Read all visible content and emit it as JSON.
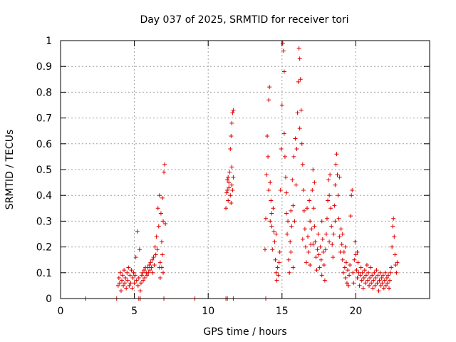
{
  "chart_data": {
    "type": "scatter",
    "title": "Day 037 of 2025, SRMTID for receiver tori",
    "xlabel": "GPS time / hours",
    "ylabel": "SRMTID / TECUs",
    "xlim": [
      0,
      25
    ],
    "ylim": [
      0,
      1
    ],
    "xticks": [
      0,
      5,
      10,
      15,
      20
    ],
    "yticks": [
      0,
      0.1,
      0.2,
      0.3,
      0.4,
      0.5,
      0.6,
      0.7,
      0.8,
      0.9,
      1
    ],
    "xtick_labels": [
      "0",
      "5",
      "10",
      "15",
      "20"
    ],
    "ytick_labels": [
      "0",
      "0.1",
      "0.2",
      "0.3",
      "0.4",
      "0.5",
      "0.6",
      "0.7",
      "0.8",
      "0.9",
      "1"
    ],
    "grid": true,
    "marker": "+",
    "color": "#e00000",
    "series": [
      {
        "name": "SRMTID",
        "points": [
          [
            1.7,
            0.0
          ],
          [
            3.8,
            0.0
          ],
          [
            5.3,
            0.0
          ],
          [
            5.4,
            0.0
          ],
          [
            7.0,
            0.0
          ],
          [
            9.1,
            0.0
          ],
          [
            11.2,
            0.0
          ],
          [
            11.3,
            0.0
          ],
          [
            11.7,
            0.0
          ],
          [
            13.9,
            0.0
          ],
          [
            3.9,
            0.05
          ],
          [
            3.95,
            0.08
          ],
          [
            4.0,
            0.06
          ],
          [
            4.05,
            0.1
          ],
          [
            4.1,
            0.03
          ],
          [
            4.15,
            0.07
          ],
          [
            4.2,
            0.09
          ],
          [
            4.25,
            0.05
          ],
          [
            4.3,
            0.11
          ],
          [
            4.35,
            0.06
          ],
          [
            4.4,
            0.08
          ],
          [
            4.45,
            0.04
          ],
          [
            4.5,
            0.1
          ],
          [
            4.55,
            0.07
          ],
          [
            4.6,
            0.12
          ],
          [
            4.65,
            0.05
          ],
          [
            4.7,
            0.09
          ],
          [
            4.75,
            0.06
          ],
          [
            4.8,
            0.11
          ],
          [
            4.85,
            0.04
          ],
          [
            4.9,
            0.08
          ],
          [
            4.95,
            0.1
          ],
          [
            5.0,
            0.06
          ],
          [
            5.05,
            0.09
          ],
          [
            5.1,
            0.16
          ],
          [
            5.15,
            0.07
          ],
          [
            5.2,
            0.26
          ],
          [
            5.25,
            0.05
          ],
          [
            5.3,
            0.08
          ],
          [
            5.35,
            0.19
          ],
          [
            5.4,
            0.03
          ],
          [
            5.45,
            0.06
          ],
          [
            5.5,
            0.09
          ],
          [
            5.55,
            0.1
          ],
          [
            5.6,
            0.07
          ],
          [
            5.65,
            0.11
          ],
          [
            5.7,
            0.08
          ],
          [
            5.75,
            0.12
          ],
          [
            5.8,
            0.1
          ],
          [
            5.85,
            0.09
          ],
          [
            5.9,
            0.12
          ],
          [
            5.95,
            0.1
          ],
          [
            6.0,
            0.13
          ],
          [
            6.05,
            0.11
          ],
          [
            6.1,
            0.14
          ],
          [
            6.15,
            0.12
          ],
          [
            6.2,
            0.15
          ],
          [
            6.25,
            0.1
          ],
          [
            6.3,
            0.16
          ],
          [
            6.35,
            0.13
          ],
          [
            6.4,
            0.2
          ],
          [
            6.45,
            0.17
          ],
          [
            6.5,
            0.24
          ],
          [
            6.55,
            0.19
          ],
          [
            6.6,
            0.35
          ],
          [
            6.65,
            0.28
          ],
          [
            6.7,
            0.4
          ],
          [
            6.75,
            0.14
          ],
          [
            6.8,
            0.33
          ],
          [
            6.85,
            0.22
          ],
          [
            6.9,
            0.39
          ],
          [
            6.95,
            0.3
          ],
          [
            7.0,
            0.49
          ],
          [
            7.05,
            0.52
          ],
          [
            7.1,
            0.29
          ],
          [
            6.95,
            0.1
          ],
          [
            6.85,
            0.12
          ],
          [
            6.75,
            0.08
          ],
          [
            6.9,
            0.17
          ],
          [
            6.7,
            0.12
          ],
          [
            11.2,
            0.35
          ],
          [
            11.25,
            0.41
          ],
          [
            11.3,
            0.46
          ],
          [
            11.35,
            0.38
          ],
          [
            11.4,
            0.43
          ],
          [
            11.45,
            0.49
          ],
          [
            11.5,
            0.4
          ],
          [
            11.55,
            0.37
          ],
          [
            11.6,
            0.44
          ],
          [
            11.65,
            0.42
          ],
          [
            11.7,
            0.47
          ],
          [
            11.5,
            0.58
          ],
          [
            11.55,
            0.63
          ],
          [
            11.6,
            0.68
          ],
          [
            11.65,
            0.72
          ],
          [
            11.7,
            0.73
          ],
          [
            11.4,
            0.45
          ],
          [
            11.3,
            0.42
          ],
          [
            11.6,
            0.51
          ],
          [
            11.35,
            0.47
          ],
          [
            13.85,
            0.19
          ],
          [
            13.9,
            0.31
          ],
          [
            13.95,
            0.48
          ],
          [
            14.0,
            0.63
          ],
          [
            14.05,
            0.55
          ],
          [
            14.1,
            0.77
          ],
          [
            14.15,
            0.82
          ],
          [
            14.2,
            0.45
          ],
          [
            14.25,
            0.38
          ],
          [
            14.3,
            0.28
          ],
          [
            14.35,
            0.19
          ],
          [
            14.4,
            0.35
          ],
          [
            14.45,
            0.26
          ],
          [
            14.5,
            0.22
          ],
          [
            14.55,
            0.15
          ],
          [
            14.6,
            0.1
          ],
          [
            14.65,
            0.07
          ],
          [
            14.7,
            0.12
          ],
          [
            14.75,
            0.09
          ],
          [
            14.8,
            0.14
          ],
          [
            14.85,
            0.18
          ],
          [
            14.9,
            0.42
          ],
          [
            14.95,
            0.58
          ],
          [
            15.0,
            0.75
          ],
          [
            15.05,
            0.99
          ],
          [
            15.1,
            0.96
          ],
          [
            15.15,
            0.88
          ],
          [
            15.2,
            0.55
          ],
          [
            15.25,
            0.47
          ],
          [
            15.3,
            0.33
          ],
          [
            15.35,
            0.25
          ],
          [
            15.4,
            0.3
          ],
          [
            15.45,
            0.15
          ],
          [
            15.5,
            0.1
          ],
          [
            15.55,
            0.22
          ],
          [
            15.6,
            0.34
          ],
          [
            15.65,
            0.28
          ],
          [
            15.7,
            0.46
          ],
          [
            15.75,
            0.36
          ],
          [
            15.8,
            0.55
          ],
          [
            15.85,
            0.3
          ],
          [
            15.9,
            0.62
          ],
          [
            15.95,
            0.44
          ],
          [
            16.0,
            0.58
          ],
          [
            16.05,
            0.72
          ],
          [
            16.1,
            0.84
          ],
          [
            16.15,
            0.97
          ],
          [
            16.2,
            0.93
          ],
          [
            16.25,
            0.85
          ],
          [
            16.3,
            0.73
          ],
          [
            16.35,
            0.6
          ],
          [
            16.4,
            0.52
          ],
          [
            16.45,
            0.42
          ],
          [
            16.5,
            0.34
          ],
          [
            16.55,
            0.27
          ],
          [
            16.6,
            0.2
          ],
          [
            16.65,
            0.14
          ],
          [
            16.7,
            0.35
          ],
          [
            16.75,
            0.24
          ],
          [
            16.8,
            0.18
          ],
          [
            16.85,
            0.38
          ],
          [
            16.9,
            0.3
          ],
          [
            16.95,
            0.21
          ],
          [
            17.0,
            0.27
          ],
          [
            17.05,
            0.42
          ],
          [
            17.1,
            0.5
          ],
          [
            17.15,
            0.35
          ],
          [
            17.2,
            0.28
          ],
          [
            17.25,
            0.22
          ],
          [
            17.3,
            0.16
          ],
          [
            17.35,
            0.11
          ],
          [
            17.4,
            0.19
          ],
          [
            17.45,
            0.25
          ],
          [
            17.5,
            0.17
          ],
          [
            17.55,
            0.12
          ],
          [
            17.6,
            0.2
          ],
          [
            17.65,
            0.15
          ],
          [
            17.7,
            0.09
          ],
          [
            17.75,
            0.23
          ],
          [
            17.8,
            0.18
          ],
          [
            17.85,
            0.13
          ],
          [
            17.9,
            0.07
          ],
          [
            17.95,
            0.19
          ],
          [
            18.0,
            0.25
          ],
          [
            18.05,
            0.31
          ],
          [
            18.1,
            0.38
          ],
          [
            18.15,
            0.46
          ],
          [
            18.2,
            0.4
          ],
          [
            18.25,
            0.48
          ],
          [
            18.3,
            0.35
          ],
          [
            18.35,
            0.28
          ],
          [
            18.4,
            0.21
          ],
          [
            18.45,
            0.16
          ],
          [
            18.5,
            0.25
          ],
          [
            18.55,
            0.36
          ],
          [
            18.6,
            0.44
          ],
          [
            18.65,
            0.52
          ],
          [
            18.7,
            0.56
          ],
          [
            18.75,
            0.48
          ],
          [
            18.8,
            0.4
          ],
          [
            18.85,
            0.31
          ],
          [
            18.9,
            0.24
          ],
          [
            18.95,
            0.18
          ],
          [
            19.0,
            0.27
          ],
          [
            19.05,
            0.21
          ],
          [
            19.1,
            0.15
          ],
          [
            19.15,
            0.1
          ],
          [
            19.2,
            0.18
          ],
          [
            19.25,
            0.12
          ],
          [
            19.3,
            0.08
          ],
          [
            19.35,
            0.14
          ],
          [
            19.4,
            0.06
          ],
          [
            19.45,
            0.11
          ],
          [
            19.5,
            0.05
          ],
          [
            19.55,
            0.09
          ],
          [
            19.6,
            0.13
          ],
          [
            19.65,
            0.32
          ],
          [
            19.7,
            0.4
          ],
          [
            19.75,
            0.42
          ],
          [
            19.8,
            0.1
          ],
          [
            19.85,
            0.06
          ],
          [
            19.9,
            0.15
          ],
          [
            19.95,
            0.22
          ],
          [
            20.0,
            0.17
          ],
          [
            20.05,
            0.11
          ],
          [
            20.1,
            0.08
          ],
          [
            20.15,
            0.14
          ],
          [
            20.2,
            0.1
          ],
          [
            20.25,
            0.05
          ],
          [
            20.3,
            0.09
          ],
          [
            20.35,
            0.12
          ],
          [
            20.4,
            0.07
          ],
          [
            20.45,
            0.1
          ],
          [
            20.5,
            0.04
          ],
          [
            20.55,
            0.08
          ],
          [
            20.6,
            0.11
          ],
          [
            20.65,
            0.06
          ],
          [
            20.7,
            0.09
          ],
          [
            20.75,
            0.13
          ],
          [
            20.8,
            0.07
          ],
          [
            20.85,
            0.1
          ],
          [
            20.9,
            0.05
          ],
          [
            20.95,
            0.08
          ],
          [
            21.0,
            0.12
          ],
          [
            21.05,
            0.06
          ],
          [
            21.1,
            0.09
          ],
          [
            21.15,
            0.04
          ],
          [
            21.2,
            0.07
          ],
          [
            21.25,
            0.1
          ],
          [
            21.3,
            0.05
          ],
          [
            21.35,
            0.08
          ],
          [
            21.4,
            0.11
          ],
          [
            21.45,
            0.06
          ],
          [
            21.5,
            0.09
          ],
          [
            21.55,
            0.03
          ],
          [
            21.6,
            0.07
          ],
          [
            21.65,
            0.1
          ],
          [
            21.7,
            0.05
          ],
          [
            21.75,
            0.08
          ],
          [
            21.8,
            0.06
          ],
          [
            21.85,
            0.09
          ],
          [
            21.9,
            0.04
          ],
          [
            21.95,
            0.07
          ],
          [
            22.0,
            0.1
          ],
          [
            22.05,
            0.05
          ],
          [
            22.1,
            0.08
          ],
          [
            22.15,
            0.06
          ],
          [
            22.2,
            0.09
          ],
          [
            22.25,
            0.04
          ],
          [
            22.3,
            0.07
          ],
          [
            22.35,
            0.1
          ],
          [
            22.4,
            0.12
          ],
          [
            22.45,
            0.2
          ],
          [
            22.5,
            0.28
          ],
          [
            22.55,
            0.31
          ],
          [
            22.6,
            0.24
          ],
          [
            22.65,
            0.17
          ],
          [
            22.7,
            0.13
          ],
          [
            22.75,
            0.1
          ],
          [
            22.8,
            0.14
          ],
          [
            14.3,
            0.33
          ],
          [
            14.6,
            0.25
          ],
          [
            15.3,
            0.41
          ],
          [
            15.6,
            0.18
          ],
          [
            16.4,
            0.23
          ],
          [
            16.9,
            0.13
          ],
          [
            17.2,
            0.45
          ],
          [
            17.7,
            0.3
          ],
          [
            18.2,
            0.22
          ],
          [
            18.6,
            0.3
          ],
          [
            19.1,
            0.25
          ],
          [
            14.1,
            0.42
          ],
          [
            14.2,
            0.3
          ],
          [
            15.15,
            0.64
          ],
          [
            15.75,
            0.12
          ],
          [
            16.2,
            0.66
          ],
          [
            17.1,
            0.21
          ],
          [
            18.9,
            0.47
          ],
          [
            19.3,
            0.2
          ],
          [
            20.1,
            0.18
          ]
        ]
      }
    ]
  }
}
